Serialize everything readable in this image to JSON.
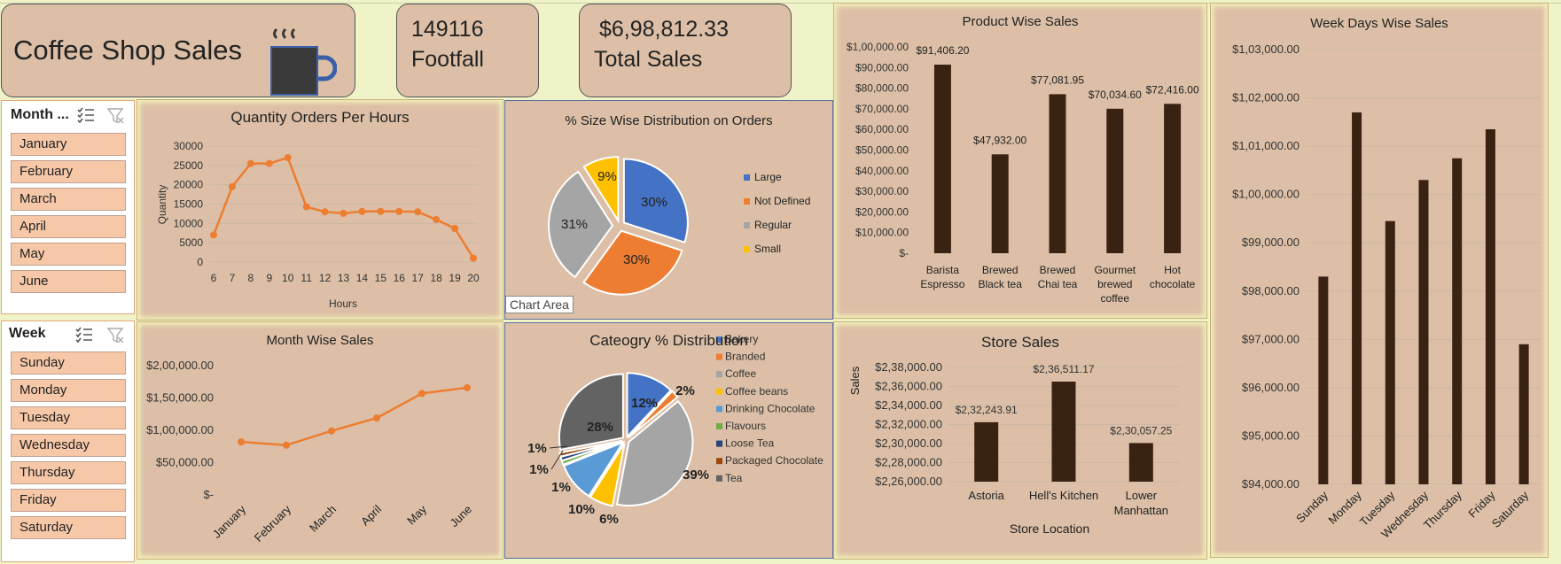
{
  "header": {
    "title": "Coffee Shop Sales"
  },
  "kpis": {
    "footfall_value": "149116",
    "footfall_label": "Footfall",
    "sales_value": "$6,98,812.33",
    "sales_label": "Total Sales"
  },
  "slicers": {
    "month": {
      "header": "Month ...",
      "items": [
        "January",
        "February",
        "March",
        "April",
        "May",
        "June"
      ]
    },
    "week": {
      "header": "Week",
      "items": [
        "Sunday",
        "Monday",
        "Tuesday",
        "Wednesday",
        "Thursday",
        "Friday",
        "Saturday"
      ]
    }
  },
  "tooltip": "Chart Area",
  "colors": {
    "accent_orange": "#ed7d31",
    "bar_dark": "#3a2212",
    "card_bg": "#dcbfa6",
    "blue": "#4472c4",
    "gray": "#a5a5a5",
    "yellow": "#ffc000"
  },
  "chart_data": [
    {
      "id": "qty",
      "type": "line",
      "title": "Quantity Orders Per Hours",
      "xlabel": "Hours",
      "ylabel": "Quantity",
      "x": [
        "6",
        "7",
        "8",
        "9",
        "10",
        "11",
        "12",
        "13",
        "14",
        "15",
        "16",
        "17",
        "18",
        "19",
        "20"
      ],
      "values": [
        7000,
        19500,
        25500,
        25500,
        27000,
        14300,
        13000,
        12600,
        13100,
        13100,
        13100,
        13000,
        11000,
        8700,
        1000
      ],
      "ylim": [
        0,
        30000
      ],
      "yticks": [
        "0",
        "5000",
        "10000",
        "15000",
        "20000",
        "25000",
        "30000"
      ]
    },
    {
      "id": "size",
      "type": "pie",
      "title": "% Size Wise Distribution on Orders",
      "categories": [
        "Large",
        "Not Defined",
        "Regular",
        "Small"
      ],
      "values": [
        30,
        30,
        31,
        9
      ],
      "labels": [
        "30%",
        "30%",
        "31%",
        "9%"
      ]
    },
    {
      "id": "product",
      "type": "bar",
      "title": "Product Wise Sales",
      "categories": [
        "Barista Espresso",
        "Brewed Black tea",
        "Brewed Chai tea",
        "Gourmet brewed coffee",
        "Hot chocolate"
      ],
      "values": [
        91406.2,
        47932.0,
        77081.95,
        70034.6,
        72416.0
      ],
      "data_labels": [
        "$91,406.20",
        "$47,932.00",
        "$77,081.95",
        "$70,034.60",
        "$72,416.00"
      ],
      "ylim": [
        0,
        100000
      ],
      "yticks": [
        "$-",
        "$10,000.00",
        "$20,000.00",
        "$30,000.00",
        "$40,000.00",
        "$50,000.00",
        "$60,000.00",
        "$70,000.00",
        "$80,000.00",
        "$90,000.00",
        "$1,00,000.00"
      ]
    },
    {
      "id": "weekday",
      "type": "bar",
      "title": "Week Days Wise Sales",
      "categories": [
        "Sunday",
        "Monday",
        "Tuesday",
        "Wednesday",
        "Thursday",
        "Friday",
        "Saturday"
      ],
      "values": [
        98300,
        101700,
        99450,
        100300,
        100750,
        101350,
        96900
      ],
      "ylim": [
        94000,
        103000
      ],
      "yticks": [
        "$94,000.00",
        "$95,000.00",
        "$96,000.00",
        "$97,000.00",
        "$98,000.00",
        "$99,000.00",
        "$1,00,000.00",
        "$1,01,000.00",
        "$1,02,000.00",
        "$1,03,000.00"
      ]
    },
    {
      "id": "month",
      "type": "line",
      "title": "Month Wise Sales",
      "x": [
        "January",
        "February",
        "March",
        "April",
        "May",
        "June"
      ],
      "values": [
        82000,
        77000,
        99000,
        119000,
        157000,
        166000
      ],
      "ylim": [
        0,
        200000
      ],
      "yticks": [
        "$-",
        "$50,000.00",
        "$1,00,000.00",
        "$1,50,000.00",
        "$2,00,000.00"
      ]
    },
    {
      "id": "category",
      "type": "pie",
      "title": "Cateogry % Distribution",
      "categories": [
        "Bakery",
        "Branded",
        "Coffee",
        "Coffee beans",
        "Drinking Chocolate",
        "Flavours",
        "Loose Tea",
        "Packaged Chocolate",
        "Tea"
      ],
      "values": [
        12,
        2,
        39,
        6,
        10,
        1,
        1,
        1,
        28
      ],
      "labels": [
        "12%",
        "2%",
        "39%",
        "6%",
        "10%",
        "1%",
        "1%",
        "1%",
        "28%"
      ]
    },
    {
      "id": "store",
      "type": "bar",
      "title": "Store  Sales",
      "xlabel": "Store Location",
      "ylabel": "Sales",
      "categories": [
        "Astoria",
        "Hell's Kitchen",
        "Lower Manhattan"
      ],
      "values": [
        232243.91,
        236511.17,
        230057.25
      ],
      "data_labels": [
        "$2,32,243.91",
        "$2,36,511.17",
        "$2,30,057.25"
      ],
      "ylim": [
        226000,
        238000
      ],
      "yticks": [
        "$2,26,000.00",
        "$2,28,000.00",
        "$2,30,000.00",
        "$2,32,000.00",
        "$2,34,000.00",
        "$2,36,000.00",
        "$2,38,000.00"
      ]
    }
  ]
}
